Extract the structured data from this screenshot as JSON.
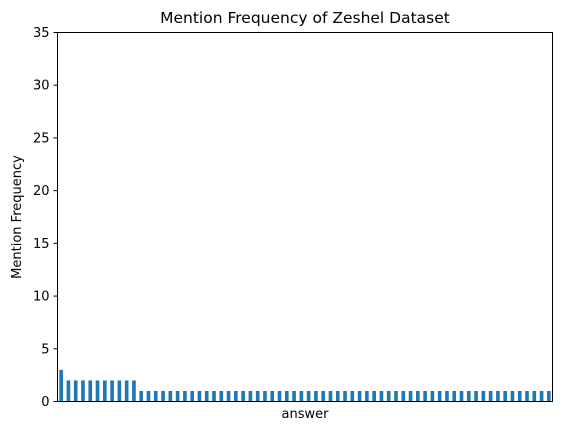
{
  "chart_data": {
    "type": "bar",
    "title": "Mention Frequency of Zeshel Dataset",
    "xlabel": "answer",
    "ylabel": "Mention Frequency",
    "ylim": [
      0,
      35
    ],
    "yticks": [
      "0",
      "5",
      "10",
      "15",
      "20",
      "25",
      "30",
      "35"
    ],
    "grid": false,
    "bar_color": "#1f77b4",
    "values": [
      3,
      2,
      2,
      2,
      2,
      2,
      2,
      2,
      2,
      2,
      2,
      1,
      1,
      1,
      1,
      1,
      1,
      1,
      1,
      1,
      1,
      1,
      1,
      1,
      1,
      1,
      1,
      1,
      1,
      1,
      1,
      1,
      1,
      1,
      1,
      1,
      1,
      1,
      1,
      1,
      1,
      1,
      1,
      1,
      1,
      1,
      1,
      1,
      1,
      1,
      1,
      1,
      1,
      1,
      1,
      1,
      1,
      1,
      1,
      1,
      1,
      1,
      1,
      1,
      1,
      1,
      1,
      1
    ]
  }
}
